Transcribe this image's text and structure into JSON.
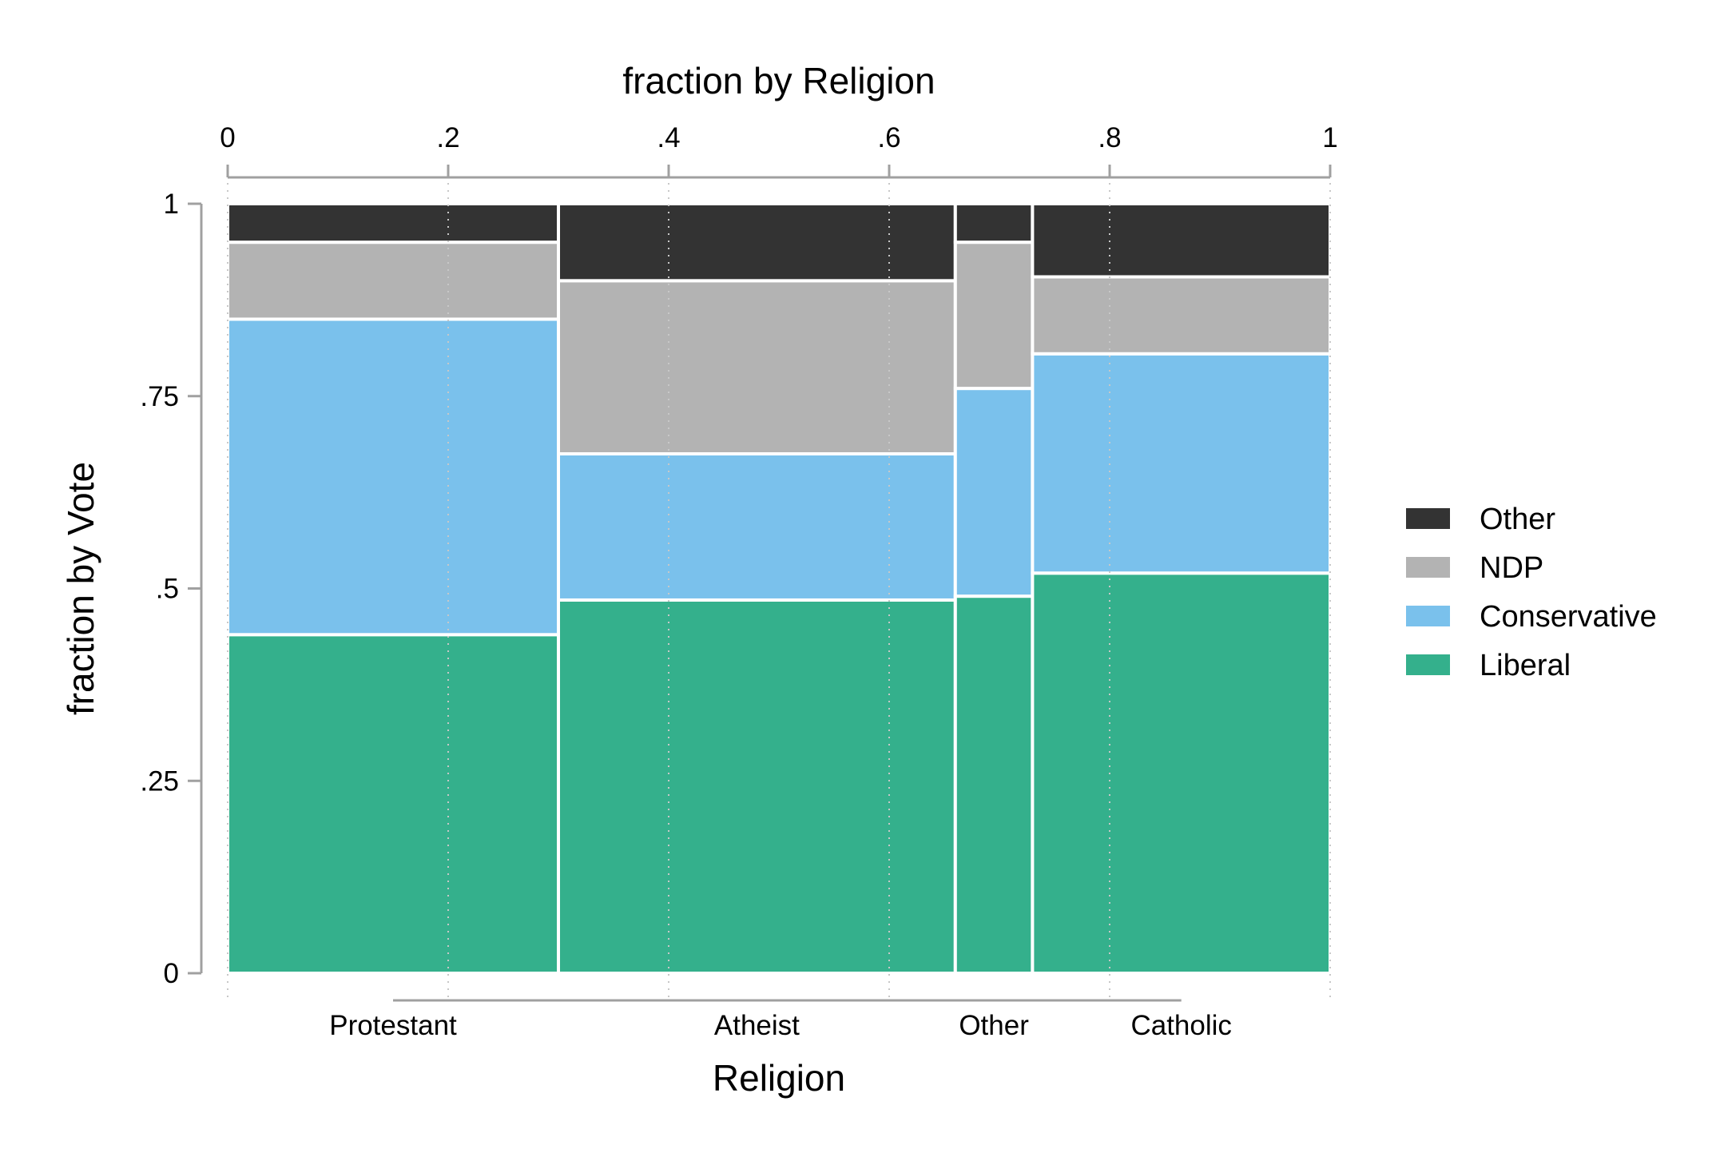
{
  "chart_data": {
    "type": "mosaic",
    "title": "",
    "top_axis_title": "fraction by Religion",
    "x_axis_title": "Religion",
    "y_axis_title": "fraction by Vote",
    "top_ticks": [
      "0",
      ".2",
      ".4",
      ".6",
      ".8",
      "1"
    ],
    "top_tick_values": [
      0,
      0.2,
      0.4,
      0.6,
      0.8,
      1
    ],
    "y_ticks": [
      "0",
      ".25",
      ".5",
      ".75",
      "1"
    ],
    "y_tick_values": [
      0,
      0.25,
      0.5,
      0.75,
      1
    ],
    "xlim": [
      0,
      1
    ],
    "ylim": [
      0,
      1
    ],
    "grid": false,
    "legend_position": "right",
    "categories": [
      "Protestant",
      "Atheist",
      "Other",
      "Catholic"
    ],
    "category_widths": [
      0.3,
      0.36,
      0.07,
      0.27
    ],
    "series": [
      {
        "name": "Liberal",
        "color": "#34b08c",
        "values": [
          0.44,
          0.485,
          0.49,
          0.52
        ]
      },
      {
        "name": "Conservative",
        "color": "#7ac1ec",
        "values": [
          0.41,
          0.19,
          0.27,
          0.285
        ]
      },
      {
        "name": "NDP",
        "color": "#b3b3b3",
        "values": [
          0.1,
          0.225,
          0.19,
          0.1
        ]
      },
      {
        "name": "Other",
        "color": "#333333",
        "values": [
          0.05,
          0.1,
          0.05,
          0.095
        ]
      }
    ],
    "legend_order": [
      "Other",
      "NDP",
      "Conservative",
      "Liberal"
    ]
  }
}
